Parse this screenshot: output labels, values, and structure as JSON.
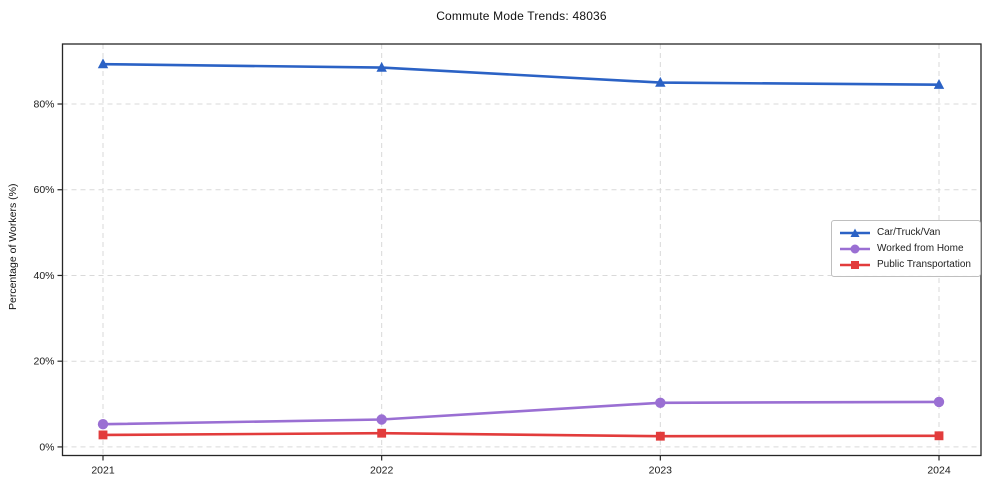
{
  "figure": {
    "title": "Commute Mode Trends: 48036",
    "ylabel": "Percentage of Workers (%)"
  },
  "chart_data": {
    "type": "line",
    "title": "Commute Mode Trends: 48036",
    "xlabel": "",
    "ylabel": "Percentage of Workers (%)",
    "categories": [
      "2021",
      "2022",
      "2023",
      "2024"
    ],
    "series": [
      {
        "name": "Car/Truck/Van",
        "values": [
          89.3,
          88.5,
          85.0,
          84.5
        ],
        "color": "#2b62c5",
        "marker": "triangle"
      },
      {
        "name": "Worked from Home",
        "values": [
          5.3,
          6.4,
          10.3,
          10.5
        ],
        "color": "#9a6fd3",
        "marker": "circle"
      },
      {
        "name": "Public Transportation",
        "values": [
          2.8,
          3.2,
          2.5,
          2.6
        ],
        "color": "#e23c3c",
        "marker": "square"
      }
    ],
    "yticks": [
      0,
      20,
      40,
      60,
      80
    ],
    "ytick_labels": [
      "0%",
      "20%",
      "40%",
      "60%",
      "80%"
    ],
    "ylim": [
      -2,
      94
    ],
    "grid": "dashed-both-axes",
    "grid_color": "#d9d9d9",
    "spine_color": "#262626",
    "tick_label_color": "#1a1a1a",
    "legend_position": "center-right-inside"
  }
}
